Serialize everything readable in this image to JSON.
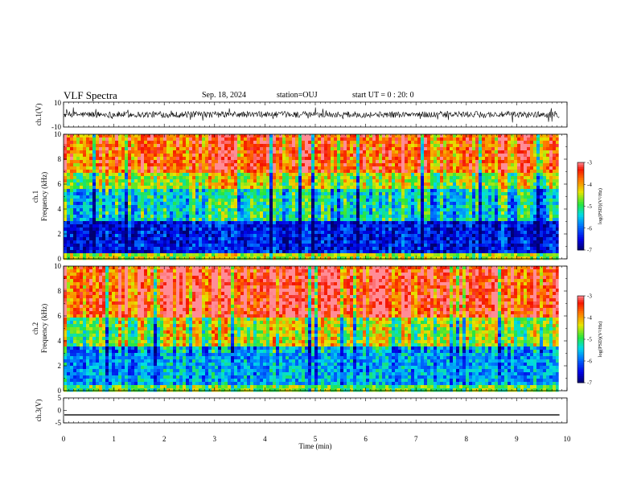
{
  "header": {
    "title": "VLF Spectra",
    "date": "Sep. 18, 2024",
    "station": "station=OUJ",
    "start": "start UT =  0 : 20: 0"
  },
  "chart_data": [
    {
      "type": "line",
      "name": "ch1-waveform",
      "ylabel": "ch.1(V)",
      "ylim": [
        -10,
        10
      ],
      "yticks": [
        "10",
        "-10"
      ],
      "xlim": [
        0,
        10
      ],
      "note_level": 0,
      "noise_amplitude": 2.5
    },
    {
      "type": "heatmap",
      "name": "ch1-spectrogram",
      "ylabel_top": "ch.1",
      "ylabel": "Frequency (kHz)",
      "ylim": [
        0,
        10
      ],
      "yticks": [
        "0",
        "2",
        "4",
        "6",
        "8",
        "10"
      ],
      "xlim": [
        0,
        9.83
      ],
      "colorbar": {
        "label": "log(PSD)(V²/Hz)",
        "range": [
          -7,
          -3
        ],
        "ticks": [
          "-3",
          "-4",
          "-5",
          "-6",
          "-7"
        ]
      },
      "bands": [
        {
          "from": 0,
          "to": 0.5,
          "level": -4.5
        },
        {
          "from": 0.5,
          "to": 3.0,
          "level": -6.4
        },
        {
          "from": 3.0,
          "to": 5.5,
          "level": -5.3
        },
        {
          "from": 5.5,
          "to": 7.0,
          "level": -4.5
        },
        {
          "from": 7.0,
          "to": 10,
          "level": -3.6
        }
      ]
    },
    {
      "type": "heatmap",
      "name": "ch2-spectrogram",
      "ylabel_top": "ch.2",
      "ylabel": "Frequency (kHz)",
      "ylim": [
        0,
        10
      ],
      "yticks": [
        "0",
        "2",
        "4",
        "6",
        "8",
        "10"
      ],
      "xlim": [
        0,
        9.83
      ],
      "colorbar": {
        "label": "log(PSD)(V²/Hz)",
        "range": [
          -7,
          -3
        ],
        "ticks": [
          "-3",
          "-4",
          "-5",
          "-6",
          "-7"
        ]
      },
      "bands": [
        {
          "from": 0,
          "to": 0.5,
          "level": -4.8
        },
        {
          "from": 0.5,
          "to": 3.5,
          "level": -5.7
        },
        {
          "from": 3.5,
          "to": 6.0,
          "level": -4.6
        },
        {
          "from": 6.0,
          "to": 10,
          "level": -3.4
        }
      ]
    },
    {
      "type": "line",
      "name": "ch3-waveform",
      "ylabel": "ch.3(V)",
      "ylim": [
        -5,
        5
      ],
      "yticks": [
        "5",
        "0",
        "-5"
      ],
      "xlim": [
        0,
        10
      ],
      "constant_value": -1.8,
      "xlabel": "Time (min)",
      "xticks": [
        "0",
        "1",
        "2",
        "3",
        "4",
        "5",
        "6",
        "7",
        "8",
        "9",
        "10"
      ]
    }
  ]
}
